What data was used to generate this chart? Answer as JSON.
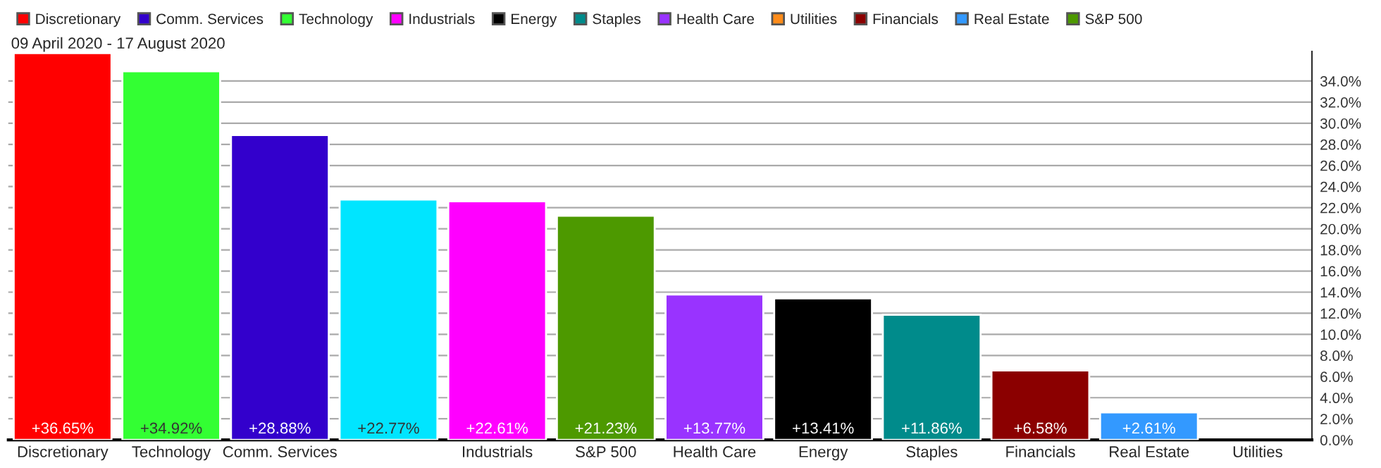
{
  "chart_data": {
    "type": "bar",
    "title": "09 April 2020 - 17 August 2020",
    "categories": [
      "Discretionary",
      "Technology",
      "Comm. Services",
      null,
      "Industrials",
      "S&P 500",
      "Health Care",
      "Energy",
      "Staples",
      "Financials",
      "Real Estate",
      "Utilities"
    ],
    "series": [
      {
        "name": "Discretionary",
        "color": "#ff0000",
        "values": [
          36.65,
          null,
          null,
          null,
          null,
          null,
          null,
          null,
          null,
          null,
          null,
          null
        ]
      },
      {
        "name": "Comm. Services",
        "color": "#3300cc",
        "values": [
          null,
          null,
          28.88,
          null,
          null,
          null,
          null,
          null,
          null,
          null,
          null,
          null
        ]
      },
      {
        "name": "Technology",
        "color": "#33ff33",
        "values": [
          null,
          34.92,
          null,
          null,
          null,
          null,
          null,
          null,
          null,
          null,
          null,
          null
        ]
      },
      {
        "name": "Industrials",
        "color": "#ff00ff",
        "values": [
          null,
          null,
          null,
          null,
          22.61,
          null,
          null,
          null,
          null,
          null,
          null,
          null
        ]
      },
      {
        "color": "#00e5ff",
        "values": [
          null,
          null,
          null,
          22.77,
          null,
          null,
          null,
          null,
          null,
          null,
          null,
          null
        ]
      },
      {
        "name": "Energy",
        "color": "#000000",
        "values": [
          null,
          null,
          null,
          null,
          null,
          null,
          null,
          13.41,
          null,
          null,
          null,
          null
        ]
      },
      {
        "name": "Staples",
        "color": "#008b8b",
        "values": [
          null,
          null,
          null,
          null,
          null,
          null,
          null,
          null,
          11.86,
          null,
          null,
          null
        ]
      },
      {
        "name": "Health Care",
        "color": "#9933ff",
        "values": [
          null,
          null,
          null,
          null,
          null,
          null,
          13.77,
          null,
          null,
          null,
          null,
          null
        ]
      },
      {
        "name": "Utilities",
        "color": "#ff8c1a",
        "values": [
          null,
          null,
          null,
          null,
          null,
          null,
          null,
          null,
          null,
          null,
          null,
          null
        ]
      },
      {
        "name": "Financials",
        "color": "#8b0000",
        "values": [
          null,
          null,
          null,
          null,
          null,
          null,
          null,
          null,
          null,
          6.58,
          null,
          null
        ]
      },
      {
        "name": "Real Estate",
        "color": "#3399ff",
        "values": [
          null,
          null,
          null,
          null,
          null,
          null,
          null,
          null,
          null,
          null,
          2.61,
          null
        ]
      },
      {
        "name": "S&P 500",
        "color": "#4d9900",
        "values": [
          null,
          null,
          null,
          null,
          null,
          21.23,
          null,
          null,
          null,
          null,
          null,
          null
        ]
      }
    ],
    "value_labels": [
      "+36.65%",
      "+34.92%",
      "+28.88%",
      "+22.77%",
      "+22.61%",
      "+21.23%",
      "+13.77%",
      "+13.41%",
      "+11.86%",
      "+6.58%",
      "+2.61%",
      null
    ],
    "ylim": [
      0,
      36.8
    ],
    "yticks": [
      {
        "value": 0,
        "label": "0.0%"
      },
      {
        "value": 2,
        "label": "2.0%"
      },
      {
        "value": 4,
        "label": "4.0%"
      },
      {
        "value": 6,
        "label": "6.0%"
      },
      {
        "value": 8,
        "label": "8.0%"
      },
      {
        "value": 10,
        "label": "10.0%"
      },
      {
        "value": 12,
        "label": "12.0%"
      },
      {
        "value": 14,
        "label": "14.0%"
      },
      {
        "value": 16,
        "label": "16.0%"
      },
      {
        "value": 18,
        "label": "18.0%"
      },
      {
        "value": 20,
        "label": "20.0%"
      },
      {
        "value": 22,
        "label": "22.0%"
      },
      {
        "value": 24,
        "label": "24.0%"
      },
      {
        "value": 26,
        "label": "26.0%"
      },
      {
        "value": 28,
        "label": "28.0%"
      },
      {
        "value": 30,
        "label": "30.0%"
      },
      {
        "value": 32,
        "label": "32.0%"
      },
      {
        "value": 34,
        "label": "34.0%"
      }
    ],
    "grid": "y",
    "legend": "top"
  }
}
